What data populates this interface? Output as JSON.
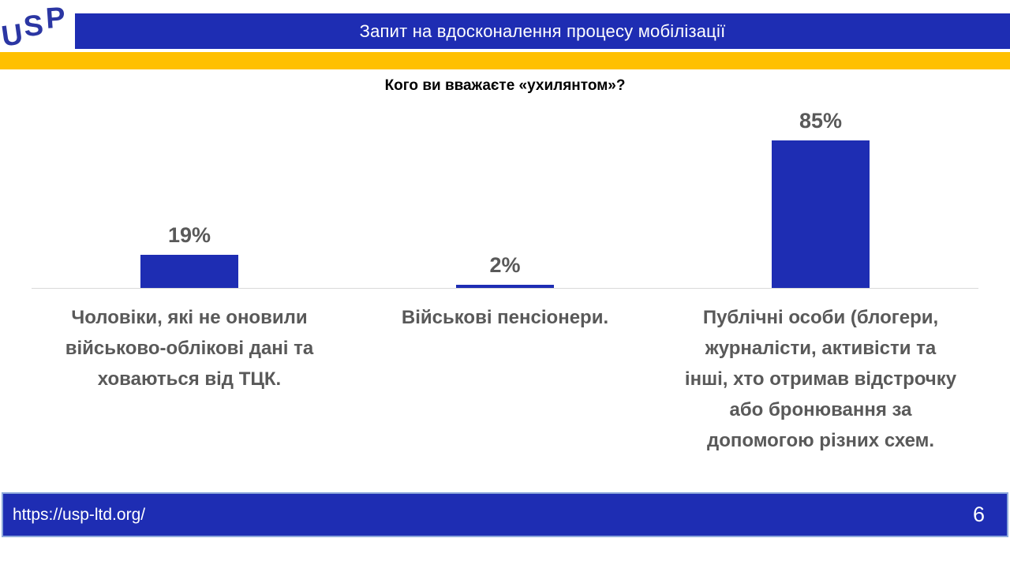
{
  "logo": {
    "letters": {
      "u": "U",
      "s": "S",
      "p": "P"
    }
  },
  "header": {
    "title": "Запит на вдосконалення процесу мобілізації"
  },
  "chart_data": {
    "type": "bar",
    "title": "Кого ви вважаєте «ухилянтом»?",
    "categories": [
      "Чоловіки, які не оновили\nвійськово-облікові дані та\nховаються від ТЦК.",
      "Військові пенсіонери.",
      "Публічні особи (блогери,\nжурналісти, активісти та\nінші, хто отримав відстрочку\nабо бронювання за\nдопомогою різних схем."
    ],
    "values": [
      19,
      2,
      85
    ],
    "value_labels": [
      "19%",
      "2%",
      "85%"
    ],
    "xlabel": "",
    "ylabel": "",
    "ylim": [
      0,
      100
    ],
    "grid": false,
    "legend": false,
    "bar_color": "#1E2DB3",
    "value_label_color": "#595959"
  },
  "footer": {
    "url": "https://usp-ltd.org/",
    "page_number": "6"
  },
  "colors": {
    "brand_blue": "#1E2DB3",
    "accent_yellow": "#FFC000",
    "text_gray": "#595959",
    "baseline_gray": "#D9D9D9",
    "footer_border": "#8EA9DB"
  }
}
